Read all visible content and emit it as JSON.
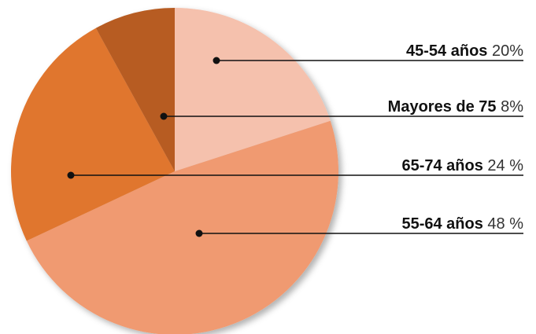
{
  "chart_data": {
    "type": "pie",
    "categories": [
      "45-54 años",
      "55-64 años",
      "65-74 años",
      "Mayores de 75"
    ],
    "values": [
      20,
      48,
      24,
      8
    ],
    "value_labels": [
      "20%",
      "48 %",
      "24 %",
      "8%"
    ],
    "colors": [
      "#f5c1ad",
      "#f09a71",
      "#e0762f",
      "#b75b22"
    ]
  }
}
